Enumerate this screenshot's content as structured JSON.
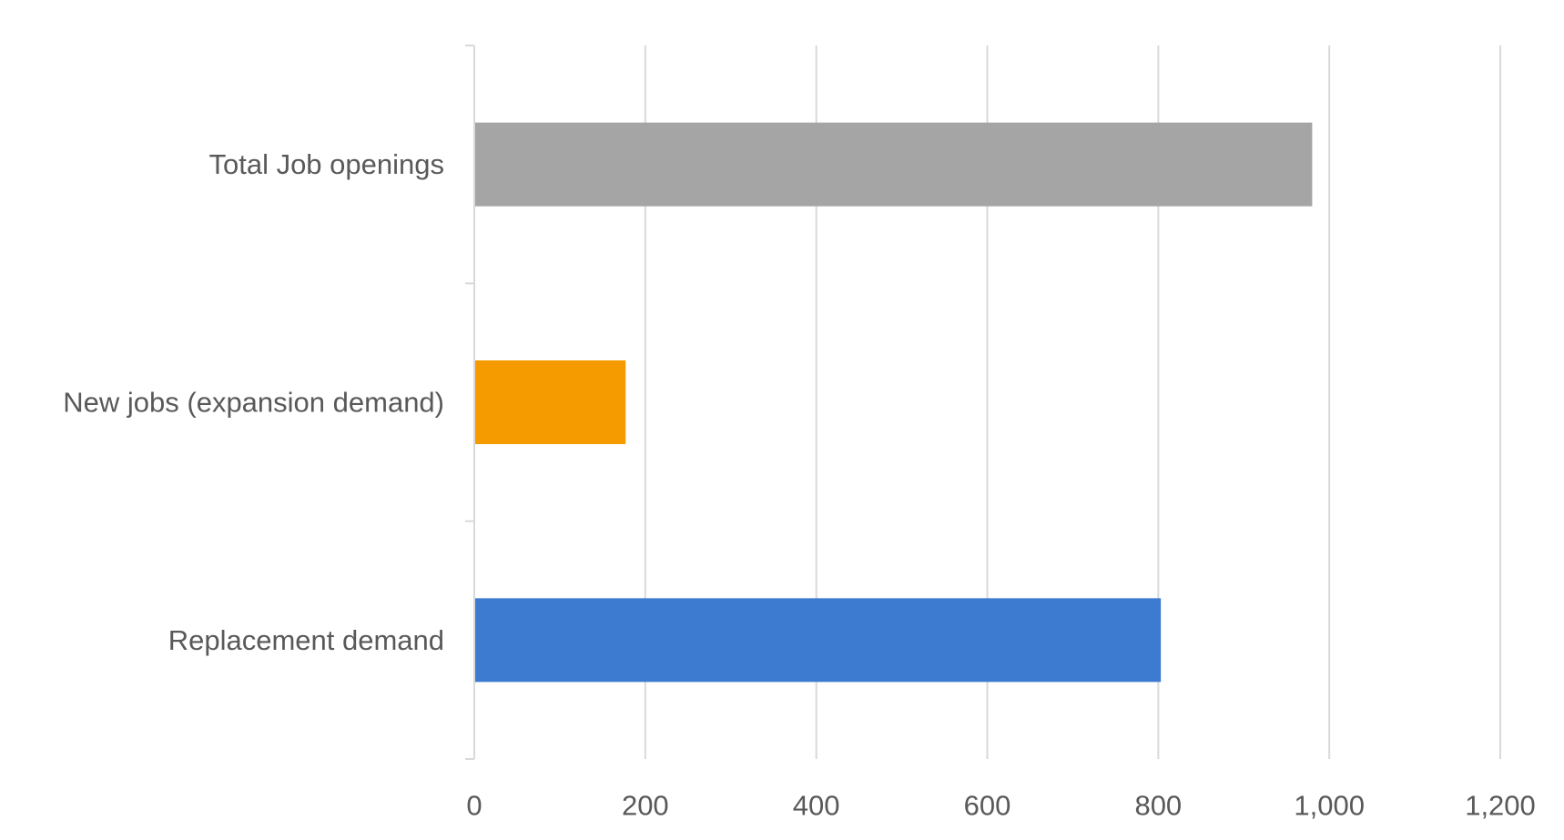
{
  "chart_data": {
    "type": "bar",
    "orientation": "horizontal",
    "categories": [
      "Total Job openings",
      "New jobs (expansion demand)",
      "Replacement demand"
    ],
    "values": [
      980,
      177,
      803
    ],
    "bar_colors": [
      "#a5a5a5",
      "#f59b00",
      "#3d7bd0"
    ],
    "xlim": [
      0,
      1200
    ],
    "xticks": [
      0,
      200,
      400,
      600,
      800,
      1000,
      1200
    ],
    "xtick_labels": [
      "0",
      "200",
      "400",
      "600",
      "800",
      "1,000",
      "1,200"
    ],
    "grid": "vertical",
    "title": "",
    "xlabel": "",
    "ylabel": ""
  }
}
